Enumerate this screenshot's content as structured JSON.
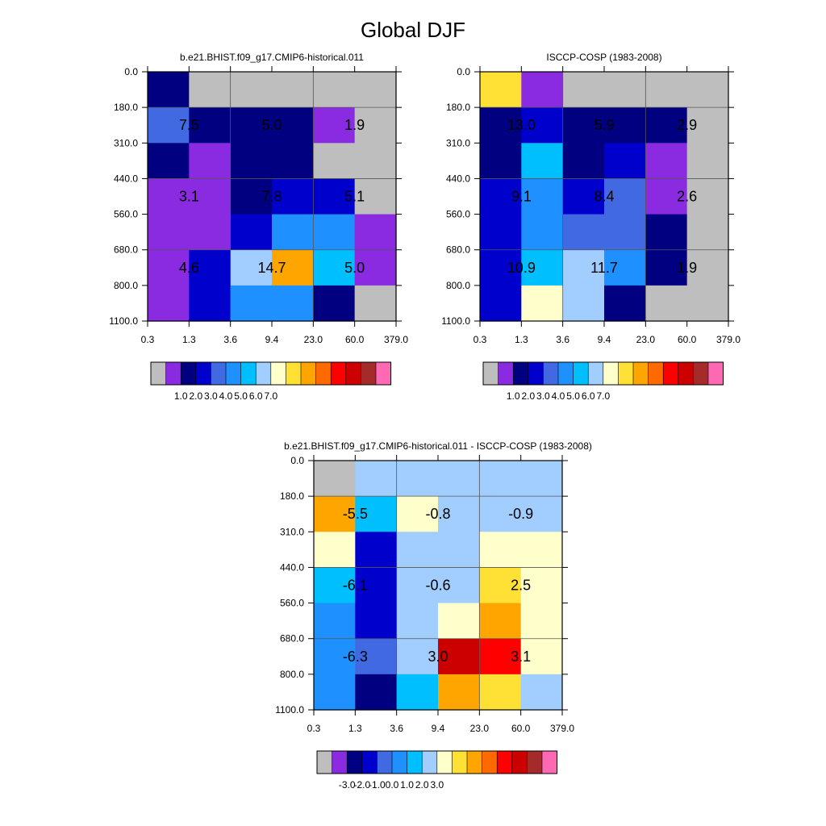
{
  "figure_title": "Global DJF",
  "chart_data": [
    {
      "type": "heatmap",
      "title": "b.e21.BHIST.f09_g17.CMIP6-historical.011",
      "x_ticks": [
        "0.3",
        "1.3",
        "3.6",
        "9.4",
        "23.0",
        "60.0",
        "379.0"
      ],
      "y_ticks": [
        "0.0",
        "180.0",
        "310.0",
        "440.0",
        "560.0",
        "680.0",
        "800.0",
        "1100.0"
      ],
      "cell_colors": [
        [
          "#000080",
          "#BEBEBE",
          "#BEBEBE",
          "#BEBEBE",
          "#BEBEBE",
          "#BEBEBE"
        ],
        [
          "#4169E1",
          "#000080",
          "#000080",
          "#000080",
          "#8A2BE2",
          "#BEBEBE"
        ],
        [
          "#000080",
          "#8A2BE2",
          "#000080",
          "#000080",
          "#BEBEBE",
          "#BEBEBE"
        ],
        [
          "#8A2BE2",
          "#8A2BE2",
          "#000080",
          "#0000CD",
          "#0000CD",
          "#BEBEBE"
        ],
        [
          "#8A2BE2",
          "#8A2BE2",
          "#0000CD",
          "#1E90FF",
          "#1E90FF",
          "#8A2BE2"
        ],
        [
          "#8A2BE2",
          "#0000CD",
          "#A2CDFF",
          "#FFA500",
          "#00BFFF",
          "#8A2BE2"
        ],
        [
          "#8A2BE2",
          "#0000CD",
          "#1E90FF",
          "#1E90FF",
          "#000080",
          "#BEBEBE"
        ]
      ],
      "block_labels": [
        {
          "col_block": 0,
          "row_block": 0,
          "text": "7.5"
        },
        {
          "col_block": 1,
          "row_block": 0,
          "text": "5.0"
        },
        {
          "col_block": 2,
          "row_block": 0,
          "text": "1.9"
        },
        {
          "col_block": 0,
          "row_block": 1,
          "text": "3.1"
        },
        {
          "col_block": 1,
          "row_block": 1,
          "text": "7.8"
        },
        {
          "col_block": 2,
          "row_block": 1,
          "text": "5.1"
        },
        {
          "col_block": 0,
          "row_block": 2,
          "text": "4.6"
        },
        {
          "col_block": 1,
          "row_block": 2,
          "text": "14.7"
        },
        {
          "col_block": 2,
          "row_block": 2,
          "text": "5.0"
        }
      ],
      "colorbar": {
        "colors": [
          "#BEBEBE",
          "#8A2BE2",
          "#000080",
          "#0000CD",
          "#4169E1",
          "#1E90FF",
          "#00BFFF",
          "#A2CDFF",
          "#FFFFCC",
          "#FFE135",
          "#FFA500",
          "#FF6A00",
          "#FF0000",
          "#CD0000",
          "#A52A2A",
          "#FF69B4"
        ],
        "labels": [
          "1.0",
          "2.0",
          "3.0",
          "4.0",
          "5.0",
          "6.0",
          "7.0"
        ],
        "label_start_index": 2
      }
    },
    {
      "type": "heatmap",
      "title": "ISCCP-COSP (1983-2008)",
      "x_ticks": [
        "0.3",
        "1.3",
        "3.6",
        "9.4",
        "23.0",
        "60.0",
        "379.0"
      ],
      "y_ticks": [
        "0.0",
        "180.0",
        "310.0",
        "440.0",
        "560.0",
        "680.0",
        "800.0",
        "1100.0"
      ],
      "cell_colors": [
        [
          "#FFE135",
          "#8A2BE2",
          "#BEBEBE",
          "#BEBEBE",
          "#BEBEBE",
          "#BEBEBE"
        ],
        [
          "#000080",
          "#0000CD",
          "#000080",
          "#000080",
          "#000080",
          "#BEBEBE"
        ],
        [
          "#000080",
          "#00BFFF",
          "#000080",
          "#0000CD",
          "#8A2BE2",
          "#BEBEBE"
        ],
        [
          "#0000CD",
          "#1E90FF",
          "#0000CD",
          "#4169E1",
          "#8A2BE2",
          "#BEBEBE"
        ],
        [
          "#0000CD",
          "#1E90FF",
          "#4169E1",
          "#4169E1",
          "#000080",
          "#BEBEBE"
        ],
        [
          "#0000CD",
          "#00BFFF",
          "#A2CDFF",
          "#1E90FF",
          "#000080",
          "#BEBEBE"
        ],
        [
          "#0000CD",
          "#FFFFCC",
          "#A2CDFF",
          "#000080",
          "#BEBEBE",
          "#BEBEBE"
        ]
      ],
      "block_labels": [
        {
          "col_block": 0,
          "row_block": 0,
          "text": "13.0"
        },
        {
          "col_block": 1,
          "row_block": 0,
          "text": "5.9"
        },
        {
          "col_block": 2,
          "row_block": 0,
          "text": "2.9"
        },
        {
          "col_block": 0,
          "row_block": 1,
          "text": "9.1"
        },
        {
          "col_block": 1,
          "row_block": 1,
          "text": "8.4"
        },
        {
          "col_block": 2,
          "row_block": 1,
          "text": "2.6"
        },
        {
          "col_block": 0,
          "row_block": 2,
          "text": "10.9"
        },
        {
          "col_block": 1,
          "row_block": 2,
          "text": "11.7"
        },
        {
          "col_block": 2,
          "row_block": 2,
          "text": "1.9"
        }
      ],
      "colorbar": {
        "colors": [
          "#BEBEBE",
          "#8A2BE2",
          "#000080",
          "#0000CD",
          "#4169E1",
          "#1E90FF",
          "#00BFFF",
          "#A2CDFF",
          "#FFFFCC",
          "#FFE135",
          "#FFA500",
          "#FF6A00",
          "#FF0000",
          "#CD0000",
          "#A52A2A",
          "#FF69B4"
        ],
        "labels": [
          "1.0",
          "2.0",
          "3.0",
          "4.0",
          "5.0",
          "6.0",
          "7.0"
        ],
        "label_start_index": 2
      }
    },
    {
      "type": "heatmap",
      "title": "b.e21.BHIST.f09_g17.CMIP6-historical.011 - ISCCP-COSP (1983-2008)",
      "x_ticks": [
        "0.3",
        "1.3",
        "3.6",
        "9.4",
        "23.0",
        "60.0",
        "379.0"
      ],
      "y_ticks": [
        "0.0",
        "180.0",
        "310.0",
        "440.0",
        "560.0",
        "680.0",
        "800.0",
        "1100.0"
      ],
      "cell_colors": [
        [
          "#BEBEBE",
          "#A2CDFF",
          "#A2CDFF",
          "#A2CDFF",
          "#A2CDFF",
          "#A2CDFF"
        ],
        [
          "#FFA500",
          "#00BFFF",
          "#FFFFCC",
          "#A2CDFF",
          "#A2CDFF",
          "#A2CDFF"
        ],
        [
          "#FFFFCC",
          "#0000CD",
          "#A2CDFF",
          "#A2CDFF",
          "#FFFFCC",
          "#FFFFCC"
        ],
        [
          "#00BFFF",
          "#0000CD",
          "#A2CDFF",
          "#A2CDFF",
          "#FFE135",
          "#FFFFCC"
        ],
        [
          "#1E90FF",
          "#0000CD",
          "#A2CDFF",
          "#FFFFCC",
          "#FFA500",
          "#FFFFCC"
        ],
        [
          "#1E90FF",
          "#4169E1",
          "#A2CDFF",
          "#CD0000",
          "#FF0000",
          "#FFFFCC"
        ],
        [
          "#1E90FF",
          "#000080",
          "#00BFFF",
          "#FFA500",
          "#FFE135",
          "#A2CDFF"
        ]
      ],
      "block_labels": [
        {
          "col_block": 0,
          "row_block": 0,
          "text": "-5.5"
        },
        {
          "col_block": 1,
          "row_block": 0,
          "text": "-0.8"
        },
        {
          "col_block": 2,
          "row_block": 0,
          "text": "-0.9"
        },
        {
          "col_block": 0,
          "row_block": 1,
          "text": "-6.1"
        },
        {
          "col_block": 1,
          "row_block": 1,
          "text": "-0.6"
        },
        {
          "col_block": 2,
          "row_block": 1,
          "text": "2.5"
        },
        {
          "col_block": 0,
          "row_block": 2,
          "text": "-6.3"
        },
        {
          "col_block": 1,
          "row_block": 2,
          "text": "3.0"
        },
        {
          "col_block": 2,
          "row_block": 2,
          "text": "3.1"
        }
      ],
      "colorbar": {
        "colors": [
          "#BEBEBE",
          "#8A2BE2",
          "#000080",
          "#0000CD",
          "#4169E1",
          "#1E90FF",
          "#00BFFF",
          "#A2CDFF",
          "#FFFFCC",
          "#FFE135",
          "#FFA500",
          "#FF6A00",
          "#FF0000",
          "#CD0000",
          "#A52A2A",
          "#FF69B4"
        ],
        "labels": [
          "-3.0",
          "-2.0",
          "-1.0",
          "0.0",
          "1.0",
          "2.0",
          "3.0"
        ],
        "label_start_index": 2
      }
    }
  ]
}
